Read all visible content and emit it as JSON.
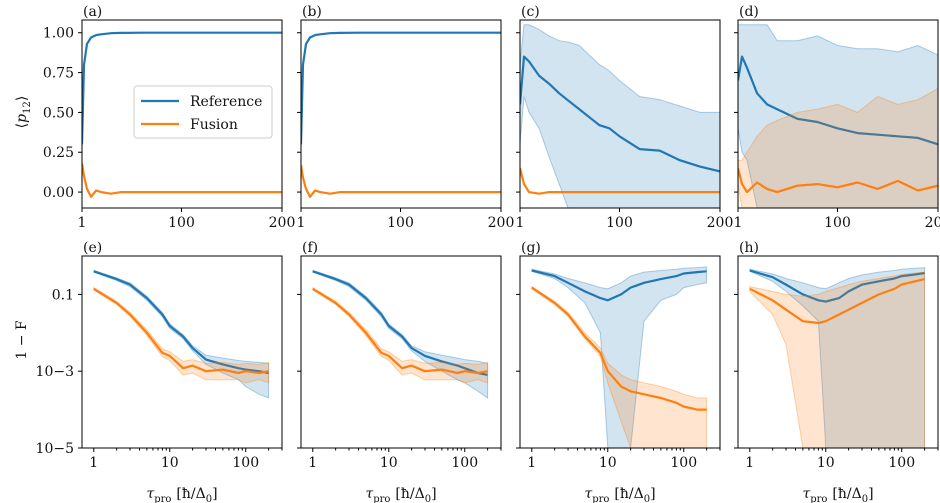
{
  "colors": {
    "reference": "#1f77b4",
    "fusion": "#ff7f0e"
  },
  "labels": {
    "top_ylabel_symbol": "p",
    "top_ylabel_sub": "12",
    "bottom_ylabel": "1 − F",
    "xlabel_symbol": "τ",
    "xlabel_sub": "pro",
    "xlabel_unit": "[ħ/Δ",
    "xlabel_unit_sub": "0",
    "xlabel_unit_end": "]"
  },
  "legend": {
    "reference": "Reference",
    "fusion": "Fusion",
    "location": "center-right of panel (a)"
  },
  "chart_data": [
    {
      "panel": "(a)",
      "type": "line",
      "xscale": "linear",
      "xlim": [
        1,
        200
      ],
      "ylim": [
        -0.1,
        1.08
      ],
      "xticks": [
        "1",
        "100",
        "200"
      ],
      "yticks": [
        "0.00",
        "0.25",
        "0.50",
        "0.75",
        "1.00"
      ],
      "x": [
        1,
        3,
        6,
        10,
        15,
        20,
        30,
        40,
        60,
        80,
        100,
        150,
        200
      ],
      "series": [
        {
          "name": "Reference",
          "values": [
            0.3,
            0.8,
            0.93,
            0.97,
            0.985,
            0.99,
            0.997,
            0.999,
            1.0,
            1.0,
            1.0,
            1.0,
            1.0
          ]
        },
        {
          "name": "Fusion",
          "values": [
            0.18,
            0.1,
            0.02,
            -0.03,
            0.01,
            0.0,
            -0.01,
            0.0,
            0.0,
            0.0,
            0.0,
            0.0,
            0.0
          ]
        }
      ]
    },
    {
      "panel": "(b)",
      "type": "line",
      "xscale": "linear",
      "xlim": [
        1,
        200
      ],
      "ylim": [
        -0.1,
        1.08
      ],
      "xticks": [
        "1",
        "100",
        "200"
      ],
      "x": [
        1,
        3,
        6,
        10,
        15,
        20,
        30,
        40,
        60,
        80,
        100,
        150,
        200
      ],
      "series": [
        {
          "name": "Reference",
          "values": [
            0.3,
            0.8,
            0.93,
            0.97,
            0.985,
            0.99,
            0.997,
            0.999,
            1.0,
            1.0,
            1.0,
            1.0,
            1.0
          ]
        },
        {
          "name": "Fusion",
          "values": [
            0.17,
            0.09,
            0.02,
            -0.03,
            0.01,
            0.0,
            -0.01,
            0.0,
            0.0,
            0.0,
            0.0,
            0.0,
            0.0
          ]
        }
      ]
    },
    {
      "panel": "(c)",
      "type": "line",
      "xscale": "linear",
      "xlim": [
        1,
        200
      ],
      "ylim": [
        -0.1,
        1.08
      ],
      "xticks": [
        "1",
        "100",
        "200"
      ],
      "x": [
        1,
        5,
        10,
        20,
        30,
        40,
        50,
        60,
        70,
        80,
        90,
        100,
        120,
        140,
        160,
        180,
        200
      ],
      "series": [
        {
          "name": "Reference",
          "values": [
            0.55,
            0.85,
            0.82,
            0.73,
            0.68,
            0.62,
            0.57,
            0.52,
            0.47,
            0.42,
            0.4,
            0.35,
            0.27,
            0.26,
            0.2,
            0.16,
            0.13
          ],
          "upper": [
            0.8,
            1.05,
            1.05,
            1.02,
            0.98,
            0.95,
            0.94,
            0.92,
            0.86,
            0.8,
            0.76,
            0.7,
            0.6,
            0.58,
            0.54,
            0.5,
            0.5
          ],
          "lower": [
            0.3,
            0.6,
            0.5,
            0.4,
            0.22,
            0.05,
            -0.12,
            -0.2,
            -0.25,
            -0.25,
            -0.25,
            -0.25,
            -0.25,
            -0.25,
            -0.25,
            -0.25,
            -0.25
          ]
        },
        {
          "name": "Fusion",
          "values": [
            0.15,
            0.05,
            0.0,
            -0.01,
            0.0,
            0.0,
            0.0,
            0.0,
            0.0,
            0.0,
            0.0,
            0.0,
            0.0,
            0.0,
            0.0,
            0.0,
            0.0
          ]
        }
      ]
    },
    {
      "panel": "(d)",
      "type": "line",
      "xscale": "linear",
      "xlim": [
        1,
        200
      ],
      "ylim": [
        -0.1,
        1.08
      ],
      "xticks": [
        "1",
        "100",
        "200"
      ],
      "x": [
        1,
        5,
        10,
        20,
        30,
        40,
        60,
        80,
        100,
        120,
        140,
        160,
        180,
        200
      ],
      "series": [
        {
          "name": "Reference",
          "values": [
            0.7,
            0.85,
            0.78,
            0.62,
            0.55,
            0.52,
            0.46,
            0.44,
            0.4,
            0.37,
            0.36,
            0.35,
            0.34,
            0.3
          ],
          "upper": [
            1.05,
            1.05,
            1.05,
            1.05,
            1.05,
            0.95,
            0.95,
            0.98,
            0.92,
            0.9,
            0.9,
            0.88,
            0.92,
            0.86
          ],
          "lower": [
            0.4,
            0.25,
            0.2,
            -0.1,
            -0.2,
            -0.2,
            -0.2,
            -0.2,
            -0.2,
            -0.2,
            -0.2,
            -0.2,
            -0.2,
            -0.2
          ]
        },
        {
          "name": "Fusion",
          "values": [
            0.15,
            0.05,
            0.0,
            0.06,
            0.02,
            0.0,
            0.04,
            0.05,
            0.03,
            0.06,
            0.02,
            0.07,
            0.01,
            0.04
          ],
          "upper": [
            0.2,
            0.2,
            0.25,
            0.35,
            0.42,
            0.45,
            0.5,
            0.52,
            0.55,
            0.5,
            0.6,
            0.55,
            0.58,
            0.65
          ],
          "lower": [
            0.05,
            -0.1,
            -0.2,
            -0.2,
            -0.2,
            -0.2,
            -0.2,
            -0.2,
            -0.2,
            -0.2,
            -0.2,
            -0.2,
            -0.2,
            -0.2
          ]
        }
      ]
    },
    {
      "panel": "(e)",
      "type": "line",
      "xscale": "log",
      "yscale": "log",
      "xlim": [
        0.7,
        300
      ],
      "ylim": [
        1e-05,
        1
      ],
      "xticks": [
        "1",
        "10",
        "100"
      ],
      "yticks": [
        "10−5",
        "10−3",
        "0.1"
      ],
      "x": [
        1,
        2,
        3,
        5,
        8,
        10,
        15,
        20,
        30,
        50,
        80,
        100,
        150,
        200
      ],
      "series": [
        {
          "name": "Reference",
          "values": [
            0.4,
            0.25,
            0.18,
            0.08,
            0.03,
            0.015,
            0.008,
            0.004,
            0.002,
            0.0015,
            0.0012,
            0.0011,
            0.001,
            0.0009
          ],
          "lower": [
            0.38,
            0.23,
            0.16,
            0.07,
            0.026,
            0.013,
            0.007,
            0.0034,
            0.0015,
            0.0009,
            0.0006,
            0.0004,
            0.00025,
            0.0002
          ],
          "upper": [
            0.42,
            0.27,
            0.2,
            0.09,
            0.034,
            0.017,
            0.009,
            0.0046,
            0.0026,
            0.0022,
            0.0019,
            0.0018,
            0.0017,
            0.0016
          ]
        },
        {
          "name": "Fusion",
          "values": [
            0.14,
            0.06,
            0.03,
            0.01,
            0.003,
            0.0025,
            0.0012,
            0.0014,
            0.001,
            0.0011,
            0.0009,
            0.001,
            0.0009,
            0.001
          ],
          "lower": [
            0.13,
            0.055,
            0.027,
            0.0085,
            0.0024,
            0.0019,
            0.0008,
            0.0009,
            0.0006,
            0.0006,
            0.0006,
            0.0005,
            0.0006,
            0.0005
          ],
          "upper": [
            0.15,
            0.066,
            0.034,
            0.012,
            0.0038,
            0.0032,
            0.0018,
            0.002,
            0.0016,
            0.0017,
            0.0015,
            0.0016,
            0.0015,
            0.0017
          ]
        }
      ]
    },
    {
      "panel": "(f)",
      "type": "line",
      "xscale": "log",
      "yscale": "log",
      "xlim": [
        0.7,
        300
      ],
      "ylim": [
        1e-05,
        1
      ],
      "xticks": [
        "1",
        "10",
        "100"
      ],
      "x": [
        1,
        2,
        3,
        5,
        8,
        10,
        15,
        20,
        30,
        50,
        80,
        100,
        150,
        200
      ],
      "series": [
        {
          "name": "Reference",
          "values": [
            0.4,
            0.25,
            0.18,
            0.08,
            0.03,
            0.015,
            0.008,
            0.004,
            0.0025,
            0.0018,
            0.0014,
            0.0012,
            0.0009,
            0.0008
          ],
          "lower": [
            0.38,
            0.23,
            0.16,
            0.07,
            0.026,
            0.013,
            0.007,
            0.0034,
            0.0018,
            0.001,
            0.0006,
            0.0005,
            0.0003,
            0.0002
          ],
          "upper": [
            0.42,
            0.27,
            0.2,
            0.09,
            0.034,
            0.017,
            0.009,
            0.0046,
            0.0032,
            0.0026,
            0.0022,
            0.002,
            0.0018,
            0.0016
          ]
        },
        {
          "name": "Fusion",
          "values": [
            0.14,
            0.06,
            0.03,
            0.01,
            0.003,
            0.0025,
            0.0012,
            0.0014,
            0.001,
            0.0011,
            0.0009,
            0.001,
            0.0009,
            0.001
          ],
          "lower": [
            0.13,
            0.055,
            0.027,
            0.0085,
            0.0024,
            0.0019,
            0.0008,
            0.0009,
            0.0006,
            0.0006,
            0.0006,
            0.0005,
            0.0006,
            0.0005
          ],
          "upper": [
            0.15,
            0.066,
            0.034,
            0.012,
            0.0038,
            0.0032,
            0.0018,
            0.002,
            0.0016,
            0.0017,
            0.0015,
            0.0016,
            0.0015,
            0.0017
          ]
        }
      ]
    },
    {
      "panel": "(g)",
      "type": "line",
      "xscale": "log",
      "yscale": "log",
      "xlim": [
        0.7,
        300
      ],
      "ylim": [
        1e-05,
        1
      ],
      "xticks": [
        "1",
        "10",
        "100"
      ],
      "x": [
        1,
        2,
        3,
        5,
        8,
        10,
        15,
        20,
        30,
        50,
        80,
        100,
        150,
        200
      ],
      "series": [
        {
          "name": "Reference",
          "values": [
            0.42,
            0.3,
            0.2,
            0.12,
            0.08,
            0.07,
            0.1,
            0.15,
            0.2,
            0.25,
            0.3,
            0.35,
            0.38,
            0.4
          ],
          "lower": [
            0.4,
            0.26,
            0.15,
            0.06,
            0.01,
            1e-05,
            1e-05,
            1e-05,
            0.02,
            0.07,
            0.1,
            0.15,
            0.18,
            0.2
          ],
          "upper": [
            0.45,
            0.34,
            0.26,
            0.2,
            0.15,
            0.14,
            0.2,
            0.3,
            0.38,
            0.42,
            0.45,
            0.48,
            0.5,
            0.52
          ]
        },
        {
          "name": "Fusion",
          "values": [
            0.15,
            0.06,
            0.03,
            0.008,
            0.003,
            0.001,
            0.0004,
            0.0003,
            0.00025,
            0.0002,
            0.00015,
            0.00012,
            0.0001,
            0.0001
          ],
          "lower": [
            0.14,
            0.055,
            0.027,
            0.007,
            0.0024,
            0.0005,
            5e-05,
            1e-05,
            1e-05,
            1e-05,
            1e-05,
            1e-05,
            1e-05,
            1e-05
          ],
          "upper": [
            0.16,
            0.066,
            0.034,
            0.01,
            0.004,
            0.0016,
            0.0008,
            0.0006,
            0.0005,
            0.0004,
            0.0003,
            0.00025,
            0.0002,
            0.0002
          ]
        }
      ]
    },
    {
      "panel": "(h)",
      "type": "line",
      "xscale": "log",
      "yscale": "log",
      "xlim": [
        0.7,
        300
      ],
      "ylim": [
        1e-05,
        1
      ],
      "xticks": [
        "1",
        "10",
        "100"
      ],
      "x": [
        1,
        2,
        3,
        5,
        8,
        10,
        15,
        20,
        30,
        50,
        80,
        100,
        150,
        200
      ],
      "series": [
        {
          "name": "Reference",
          "values": [
            0.42,
            0.28,
            0.18,
            0.1,
            0.07,
            0.065,
            0.08,
            0.12,
            0.18,
            0.22,
            0.26,
            0.3,
            0.33,
            0.36
          ],
          "lower": [
            0.4,
            0.22,
            0.12,
            0.05,
            0.02,
            1e-05,
            1e-05,
            1e-05,
            1e-05,
            1e-05,
            1e-05,
            1e-05,
            1e-05,
            1e-05
          ],
          "upper": [
            0.45,
            0.34,
            0.26,
            0.2,
            0.15,
            0.14,
            0.2,
            0.26,
            0.32,
            0.38,
            0.42,
            0.45,
            0.48,
            0.5
          ]
        },
        {
          "name": "Fusion",
          "values": [
            0.14,
            0.07,
            0.04,
            0.02,
            0.018,
            0.02,
            0.03,
            0.04,
            0.06,
            0.1,
            0.14,
            0.18,
            0.22,
            0.25
          ],
          "lower": [
            0.12,
            0.03,
            0.005,
            1e-05,
            1e-05,
            1e-05,
            1e-05,
            1e-05,
            1e-05,
            1e-05,
            1e-05,
            1e-05,
            1e-05,
            1e-05
          ],
          "upper": [
            0.16,
            0.12,
            0.1,
            0.09,
            0.1,
            0.12,
            0.15,
            0.18,
            0.22,
            0.26,
            0.3,
            0.33,
            0.36,
            0.38
          ]
        }
      ]
    }
  ]
}
